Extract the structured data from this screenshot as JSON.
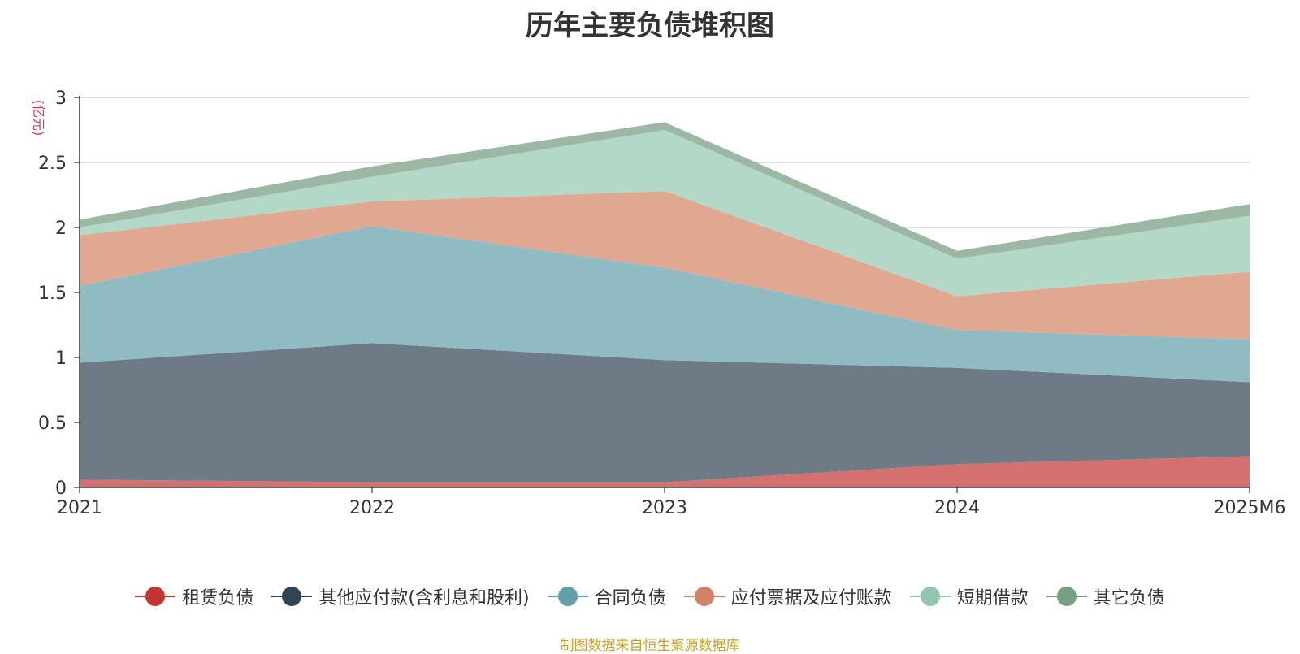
{
  "chart_data": {
    "type": "area",
    "stacked": true,
    "title": "历年主要负债堆积图",
    "unit_label": "(亿元)",
    "categories": [
      "2021",
      "2022",
      "2023",
      "2024",
      "2025M6"
    ],
    "ylim": [
      0,
      3
    ],
    "yticks": [
      "0",
      "0.5",
      "1",
      "1.5",
      "2",
      "2.5",
      "3"
    ],
    "ytick_values": [
      0,
      0.5,
      1,
      1.5,
      2,
      2.5,
      3
    ],
    "grid": true,
    "legend_position": "bottom",
    "series": [
      {
        "name": "租赁负债",
        "values": [
          0.06,
          0.04,
          0.04,
          0.18,
          0.24
        ],
        "color": "#c23531",
        "fill": "#d4716f"
      },
      {
        "name": "其他应付款(含利息和股利)",
        "values": [
          0.9,
          1.07,
          0.94,
          0.74,
          0.57
        ],
        "color": "#2f4554",
        "fill": "#6d7b86"
      },
      {
        "name": "合同负债",
        "values": [
          0.59,
          0.9,
          0.71,
          0.29,
          0.33
        ],
        "color": "#61a0a8",
        "fill": "#91bbc2"
      },
      {
        "name": "应付票据及应付账款",
        "values": [
          0.39,
          0.19,
          0.59,
          0.26,
          0.52
        ],
        "color": "#d48265",
        "fill": "#e0a791"
      },
      {
        "name": "短期借款",
        "values": [
          0.06,
          0.19,
          0.47,
          0.29,
          0.43
        ],
        "color": "#91c7ae",
        "fill": "#b3d8c7"
      },
      {
        "name": "其它负债",
        "values": [
          0.06,
          0.08,
          0.06,
          0.06,
          0.09
        ],
        "color": "#749f83",
        "fill": "#9db7a5"
      }
    ]
  },
  "footer": {
    "source": "制图数据来自恒生聚源数据库"
  }
}
